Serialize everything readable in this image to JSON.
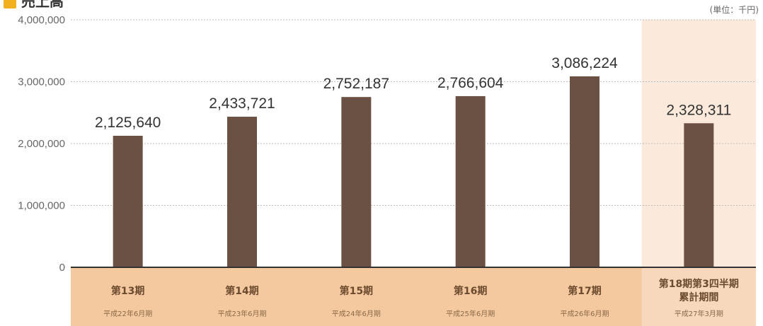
{
  "chart_data": {
    "type": "bar",
    "title": "売上高",
    "unit": "(単位：千円)",
    "categories": [
      "第13期",
      "第14期",
      "第15期",
      "第16期",
      "第17期",
      "第18期第3四半期累計期間"
    ],
    "category_lines": [
      [
        "第13期"
      ],
      [
        "第14期"
      ],
      [
        "第15期"
      ],
      [
        "第16期"
      ],
      [
        "第17期"
      ],
      [
        "第18期第3四半期",
        "累計期間"
      ]
    ],
    "sublabels": [
      "平成22年6月期",
      "平成23年6月期",
      "平成24年6月期",
      "平成25年6月期",
      "平成26年6月期",
      "平成27年3月期"
    ],
    "values": [
      2125640,
      2433721,
      2752187,
      2766604,
      3086224,
      2328311
    ],
    "value_labels": [
      "2,125,640",
      "2,433,721",
      "2,752,187",
      "2,766,604",
      "3,086,224",
      "2,328,311"
    ],
    "ylim": [
      0,
      4000000
    ],
    "yticks": [
      0,
      1000000,
      2000000,
      3000000,
      4000000
    ],
    "ytick_labels": [
      "0",
      "1,000,000",
      "2,000,000",
      "3,000,000",
      "4,000,000"
    ],
    "highlight_index": 5,
    "grid": true,
    "colors": {
      "bar": "#6b5143",
      "axis_band": "#f5c9a0",
      "highlight_column": "#fbeadb",
      "highlight_band": "#f7d8bd",
      "grid": "#bbbbbb",
      "baseline": "#333333",
      "title_icon": "#f0b020"
    }
  }
}
